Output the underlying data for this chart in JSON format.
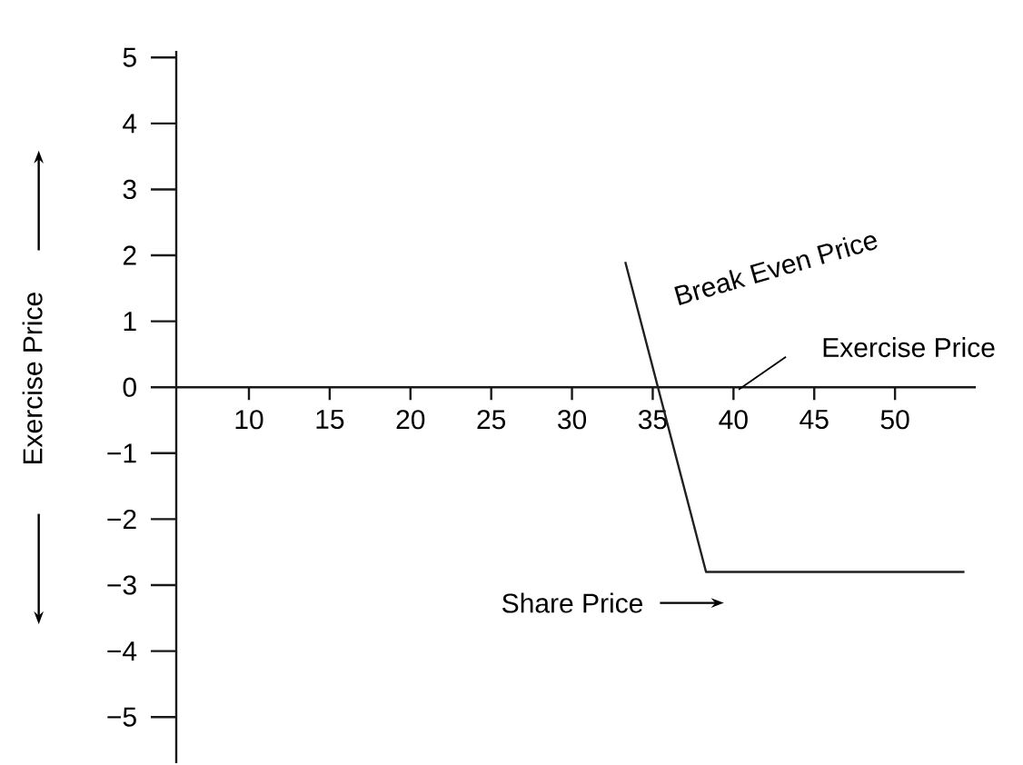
{
  "chart_data": {
    "type": "line",
    "xlabel": "Share Price",
    "ylabel": "Exercise Price",
    "x": [
      33.3,
      38.3,
      54.3
    ],
    "values": [
      1.9,
      -2.8,
      -2.8
    ],
    "color": "#231f20",
    "xlim": [
      5.5,
      55
    ],
    "ylim": [
      -5.7,
      5.1
    ],
    "xticks": [
      10,
      15,
      20,
      25,
      30,
      35,
      40,
      45,
      50
    ],
    "yticks": [
      {
        "value": -5,
        "label": "−5"
      },
      {
        "value": -4,
        "label": "−4"
      },
      {
        "value": -3,
        "label": "−3"
      },
      {
        "value": -2,
        "label": "−2"
      },
      {
        "value": -1,
        "label": "−1"
      },
      0,
      1,
      2,
      3,
      4,
      5
    ],
    "annotations": [
      "Break Even Price",
      "Exercise Price"
    ]
  }
}
